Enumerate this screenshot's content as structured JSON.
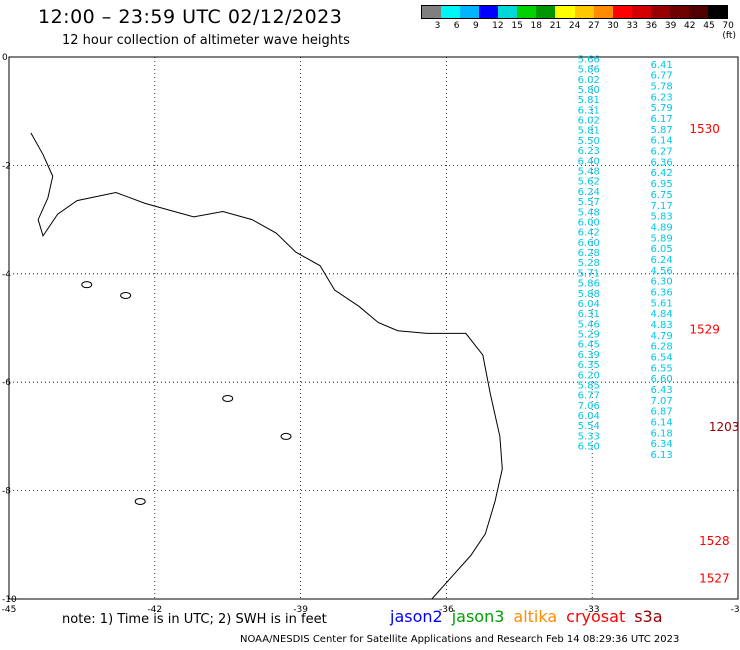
{
  "header": {
    "title": "12:00 – 23:59 UTC 02/12/2023",
    "subtitle": "12 hour collection of altimeter wave heights"
  },
  "color_scale": {
    "labels": [
      "3",
      "6",
      "9",
      "12",
      "15",
      "18",
      "21",
      "24",
      "27",
      "30",
      "33",
      "36",
      "39",
      "42",
      "45",
      "70 (ft)"
    ],
    "colors": [
      "#7f7f7f",
      "#00f5f5",
      "#00b4ff",
      "#0000ff",
      "#00d8d8",
      "#00d200",
      "#009600",
      "#ffff00",
      "#ffc800",
      "#ff8c00",
      "#ff0000",
      "#d20000",
      "#960000",
      "#6e0000",
      "#500000",
      "#000000"
    ]
  },
  "axes": {
    "lon_labels": [
      "-45",
      "-42",
      "-39",
      "-36",
      "-33",
      "-30"
    ],
    "lat_labels": [
      "0",
      "-2",
      "-4",
      "-6",
      "-8",
      "-10"
    ]
  },
  "map_data": {
    "lon_range": [
      -45,
      -30
    ],
    "lat_range": [
      -10,
      0
    ],
    "coastline": [
      [
        -44.55,
        -1.4
      ],
      [
        -44.3,
        -1.8
      ],
      [
        -44.1,
        -2.2
      ],
      [
        -44.2,
        -2.6
      ],
      [
        -44.4,
        -3.0
      ],
      [
        -44.3,
        -3.3
      ],
      [
        -44.0,
        -2.9
      ],
      [
        -43.6,
        -2.65
      ],
      [
        -42.8,
        -2.5
      ],
      [
        -42.2,
        -2.7
      ],
      [
        -41.6,
        -2.85
      ],
      [
        -41.2,
        -2.95
      ],
      [
        -40.6,
        -2.85
      ],
      [
        -40.0,
        -3.0
      ],
      [
        -39.5,
        -3.25
      ],
      [
        -39.1,
        -3.6
      ],
      [
        -38.6,
        -3.85
      ],
      [
        -38.3,
        -4.3
      ],
      [
        -37.8,
        -4.6
      ],
      [
        -37.4,
        -4.9
      ],
      [
        -37.0,
        -5.05
      ],
      [
        -36.4,
        -5.1
      ],
      [
        -35.6,
        -5.1
      ],
      [
        -35.25,
        -5.5
      ],
      [
        -35.1,
        -6.2
      ],
      [
        -34.9,
        -7.0
      ],
      [
        -34.85,
        -7.6
      ],
      [
        -35.0,
        -8.2
      ],
      [
        -35.2,
        -8.8
      ],
      [
        -35.5,
        -9.2
      ],
      [
        -35.9,
        -9.6
      ],
      [
        -36.3,
        -10.0
      ]
    ],
    "islands": [
      [
        -43.4,
        -4.2
      ],
      [
        -42.6,
        -4.4
      ],
      [
        -40.5,
        -6.3
      ],
      [
        -39.3,
        -7.0
      ],
      [
        -42.3,
        -8.2
      ]
    ],
    "tracks": [
      {
        "lon": -33.3,
        "color": "#00c8e6",
        "lat_start": -0.1,
        "lat_step": -0.188,
        "values": [
          "5.66",
          "5.86",
          "6.02",
          "5.80",
          "5.81",
          "6.31",
          "6.02",
          "5.81",
          "5.50",
          "6.23",
          "6.40",
          "5.48",
          "5.62",
          "6.24",
          "5.57",
          "5.48",
          "6.00",
          "6.42",
          "6.60",
          "6.28",
          "5.28",
          "5.71",
          "5.86",
          "5.88",
          "6.04",
          "6.31",
          "5.46",
          "5.29",
          "6.45",
          "6.39",
          "6.35",
          "6.20",
          "5.85",
          "6.77",
          "7.06",
          "6.04",
          "5.54",
          "5.33",
          "6.50"
        ]
      },
      {
        "lon": -31.8,
        "color": "#00c8e6",
        "lat_start": -0.2,
        "lat_step": -0.2,
        "values": [
          "6.41",
          "6.77",
          "5.78",
          "6.23",
          "5.79",
          "6.17",
          "5.87",
          "6.14",
          "6.27",
          "6.36",
          "6.42",
          "6.95",
          "6.75",
          "7.17",
          "5.83",
          "4.89",
          "5.89",
          "6.05",
          "6.24",
          "4.56",
          "6.30",
          "6.36",
          "5.61",
          "4.84",
          "4.83",
          "4.79",
          "6.28",
          "6.54",
          "6.55",
          "6.60",
          "6.43",
          "7.07",
          "6.87",
          "6.14",
          "6.18",
          "6.34",
          "6.13"
        ]
      }
    ],
    "markers": [
      {
        "lon": -31.0,
        "lat": -1.4,
        "label": "1530",
        "color": "#ff0000"
      },
      {
        "lon": -31.0,
        "lat": -5.1,
        "label": "1529",
        "color": "#ff0000"
      },
      {
        "lon": -30.6,
        "lat": -6.9,
        "label": "1203",
        "color": "#960000"
      },
      {
        "lon": -30.8,
        "lat": -9.0,
        "label": "1528",
        "color": "#ff0000"
      },
      {
        "lon": -30.8,
        "lat": -9.7,
        "label": "1527",
        "color": "#ff0000"
      }
    ]
  },
  "note": "note: 1) Time is in UTC; 2) SWH is in feet",
  "satellites": [
    {
      "name": "jason2",
      "color": "#0000ff"
    },
    {
      "name": "jason3",
      "color": "#00a000"
    },
    {
      "name": "altika",
      "color": "#ff8c00"
    },
    {
      "name": "cryosat",
      "color": "#ff0000"
    },
    {
      "name": "s3a",
      "color": "#960000"
    }
  ],
  "footer": "NOAA/NESDIS Center for Satellite Applications and Research   Feb 14 08:29:36 UTC 2023"
}
